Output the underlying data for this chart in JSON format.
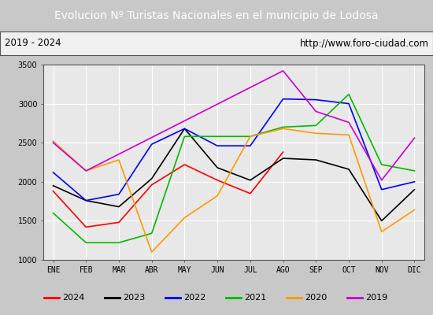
{
  "title": "Evolucion Nº Turistas Nacionales en el municipio de Lodosa",
  "subtitle_left": "2019 - 2024",
  "subtitle_right": "http://www.foro-ciudad.com",
  "months": [
    "ENE",
    "FEB",
    "MAR",
    "ABR",
    "MAY",
    "JUN",
    "JUL",
    "AGO",
    "SEP",
    "OCT",
    "NOV",
    "DIC"
  ],
  "ylim": [
    1000,
    3500
  ],
  "yticks": [
    1000,
    1500,
    2000,
    2500,
    3000,
    3500
  ],
  "series": {
    "2024": {
      "color": "#ff0000",
      "values": [
        1880,
        1420,
        1480,
        1960,
        2220,
        2020,
        1850,
        2380,
        null,
        null,
        null,
        null
      ]
    },
    "2023": {
      "color": "#000000",
      "values": [
        1950,
        1760,
        1680,
        2040,
        2680,
        2180,
        2020,
        2300,
        2280,
        2160,
        1500,
        1900
      ]
    },
    "2022": {
      "color": "#0000ff",
      "values": [
        2120,
        1760,
        1840,
        2480,
        2680,
        2460,
        2460,
        3060,
        3050,
        3000,
        1900,
        2000
      ]
    },
    "2021": {
      "color": "#00bb00",
      "values": [
        1600,
        1220,
        1220,
        1340,
        2580,
        2580,
        2580,
        2700,
        2720,
        3120,
        2220,
        2140
      ]
    },
    "2020": {
      "color": "#ff9900",
      "values": [
        2520,
        2140,
        2280,
        1100,
        1540,
        1820,
        2580,
        2680,
        2620,
        2600,
        1360,
        1640
      ]
    },
    "2019": {
      "color": "#cc00cc",
      "values": [
        2500,
        2140,
        null,
        null,
        null,
        null,
        null,
        3420,
        2900,
        2760,
        2020,
        2560
      ]
    }
  },
  "title_bg_color": "#4472c4",
  "title_color": "#ffffff",
  "subtitle_bg_color": "#e8e8e8",
  "subtitle_color": "#000000",
  "plot_bg_color": "#e8e8e8",
  "grid_color": "#ffffff",
  "border_color": "#555555",
  "legend_order": [
    "2024",
    "2023",
    "2022",
    "2021",
    "2020",
    "2019"
  ],
  "title_fontsize": 10,
  "tick_fontsize": 7,
  "legend_fontsize": 8
}
